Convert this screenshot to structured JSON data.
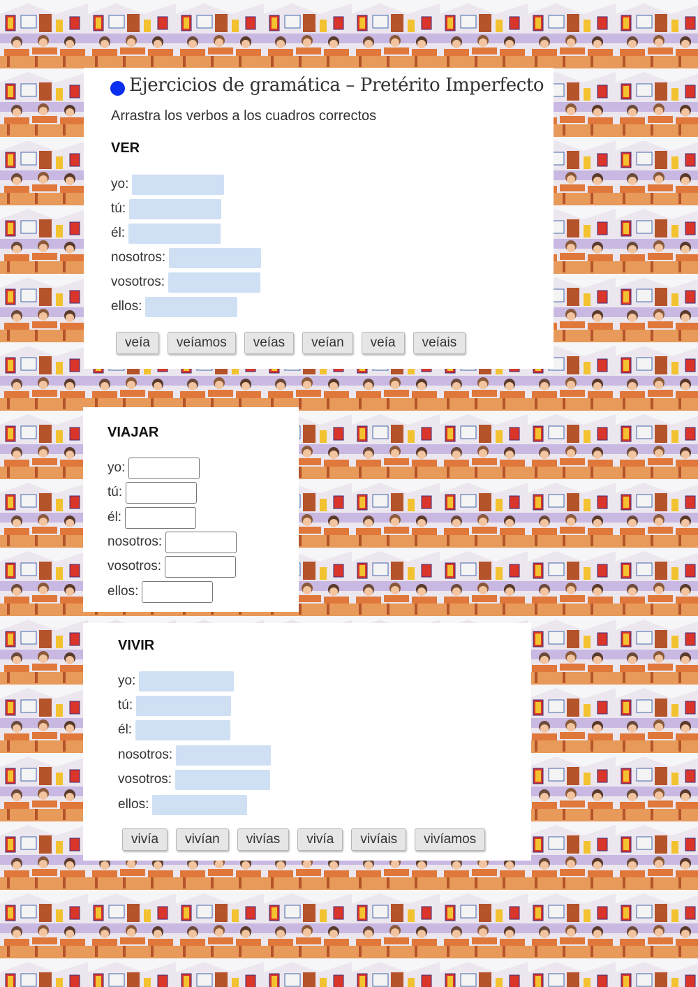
{
  "header": {
    "title": "Ejercicios de gramática – Pretérito Imperfecto",
    "instruction": "Arrastra los verbos a los cuadros correctos"
  },
  "sections": [
    {
      "verb": "VER",
      "rows": [
        {
          "label": "yo:"
        },
        {
          "label": "tú:"
        },
        {
          "label": "él:"
        },
        {
          "label": "nosotros:"
        },
        {
          "label": "vosotros:"
        },
        {
          "label": "ellos:"
        }
      ],
      "options": [
        "veía",
        "veíamos",
        "veías",
        "veían",
        "veía",
        "veíais"
      ]
    },
    {
      "verb": "VIAJAR",
      "rows": [
        {
          "label": "yo:"
        },
        {
          "label": "tú:"
        },
        {
          "label": "él:"
        },
        {
          "label": "nosotros:"
        },
        {
          "label": "vosotros:"
        },
        {
          "label": "ellos:"
        }
      ]
    },
    {
      "verb": "VIVIR",
      "rows": [
        {
          "label": "yo:"
        },
        {
          "label": "tú:"
        },
        {
          "label": "él:"
        },
        {
          "label": "nosotros:"
        },
        {
          "label": "vosotros:"
        },
        {
          "label": "ellos:"
        }
      ],
      "options": [
        "vivía",
        "vivían",
        "vivías",
        "vivía",
        "vivíais",
        "vivíamos"
      ]
    }
  ],
  "colors": {
    "title_dot": "#0a2ff0",
    "drop_zone": "#cfe0f4",
    "chip_bg": "#e6e6e6",
    "panel_bg": "#ffffff"
  }
}
